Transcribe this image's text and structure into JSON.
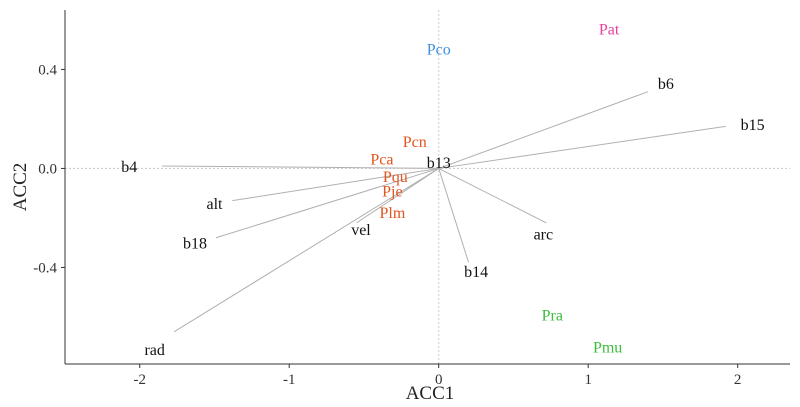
{
  "chart_data": {
    "type": "scatter",
    "title": "",
    "xlabel": "ACC1",
    "ylabel": "ACC2",
    "xlim": [
      -2.5,
      2.35
    ],
    "ylim": [
      -0.79,
      0.64
    ],
    "x_ticks": [
      -2,
      -1,
      0,
      1,
      2
    ],
    "y_ticks": [
      -0.4,
      0.0,
      0.4
    ],
    "x_tick_labels": [
      "-2",
      "-1",
      "0",
      "1",
      "2"
    ],
    "y_tick_labels": [
      "-0.4",
      "0.0",
      "0.4"
    ],
    "grid": false,
    "reference_lines": {
      "x": 0,
      "y": 0,
      "style": "dotted"
    },
    "vectors": [
      {
        "label": "b6",
        "x": 1.4,
        "y": 0.31,
        "label_x": 1.52,
        "label_y": 0.345
      },
      {
        "label": "b15",
        "x": 1.92,
        "y": 0.17,
        "label_x": 2.1,
        "label_y": 0.18
      },
      {
        "label": "b4",
        "x": -1.85,
        "y": 0.01,
        "label_x": -2.07,
        "label_y": 0.01
      },
      {
        "label": "b13",
        "x": 0.0,
        "y": 0.0,
        "label_x": 0.0,
        "label_y": 0.025
      },
      {
        "label": "alt",
        "x": -1.38,
        "y": -0.13,
        "label_x": -1.5,
        "label_y": -0.14
      },
      {
        "label": "b18",
        "x": -1.49,
        "y": -0.28,
        "label_x": -1.63,
        "label_y": -0.3
      },
      {
        "label": "vel",
        "x": -0.55,
        "y": -0.22,
        "label_x": -0.52,
        "label_y": -0.245
      },
      {
        "label": "arc",
        "x": 0.72,
        "y": -0.22,
        "label_x": 0.7,
        "label_y": -0.262
      },
      {
        "label": "b14",
        "x": 0.2,
        "y": -0.38,
        "label_x": 0.25,
        "label_y": -0.415
      },
      {
        "label": "rad",
        "x": -1.77,
        "y": -0.66,
        "label_x": -1.9,
        "label_y": -0.73
      }
    ],
    "points": [
      {
        "label": "Pco",
        "x": 0.0,
        "y": 0.485,
        "color": "#3d8fe0"
      },
      {
        "label": "Pat",
        "x": 1.14,
        "y": 0.565,
        "color": "#e8419c"
      },
      {
        "label": "Pcn",
        "x": -0.16,
        "y": 0.11,
        "color": "#e3541e"
      },
      {
        "label": "Pca",
        "x": -0.38,
        "y": 0.04,
        "color": "#e3541e"
      },
      {
        "label": "Pqu",
        "x": -0.29,
        "y": -0.03,
        "color": "#e3541e"
      },
      {
        "label": "Pje",
        "x": -0.31,
        "y": -0.09,
        "color": "#e3541e"
      },
      {
        "label": "Plm",
        "x": -0.31,
        "y": -0.175,
        "color": "#e3541e"
      },
      {
        "label": "Pra",
        "x": 0.76,
        "y": -0.59,
        "color": "#3dbd3d"
      },
      {
        "label": "Pmu",
        "x": 1.13,
        "y": -0.72,
        "color": "#3dbd3d"
      }
    ],
    "text_color": "#111111",
    "vector_color": "#b0b0b0",
    "refline_color": "#c8c8c8",
    "axis_color": "#333333"
  }
}
